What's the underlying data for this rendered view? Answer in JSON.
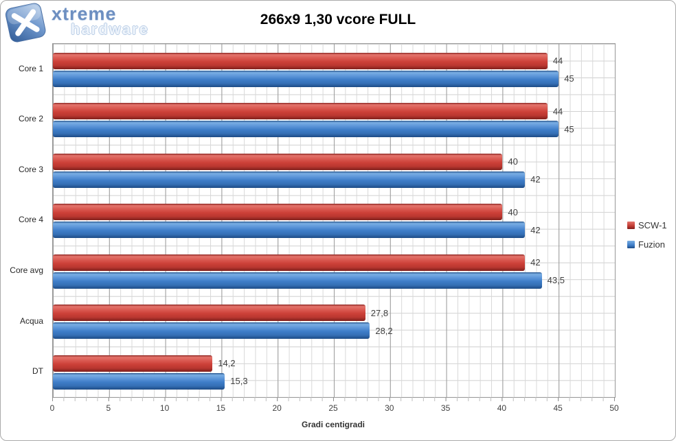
{
  "logo": {
    "brand_top": "xtreme",
    "brand_bottom": "hardware"
  },
  "legend": {
    "position": "right"
  },
  "colors": {
    "series_red": "#c0392f",
    "series_blue": "#3e7dc8",
    "grid_minor": "#d8d8d8",
    "grid_major": "#9a9a9a",
    "frame_border": "#a9a9a9",
    "text": "#3f3f3f"
  },
  "chart_data": {
    "type": "bar",
    "orientation": "horizontal",
    "title": "266x9 1,30 vcore FULL",
    "xlabel": "Gradi centigradi",
    "xlim": [
      0,
      50
    ],
    "xticks": [
      "0",
      "5",
      "10",
      "15",
      "20",
      "25",
      "30",
      "35",
      "40",
      "45",
      "50"
    ],
    "grid": "both",
    "legend_position": "right",
    "categories": [
      "Core 1",
      "Core 2",
      "Core 3",
      "Core 4",
      "Core avg",
      "Acqua",
      "DT"
    ],
    "series": [
      {
        "name": "SCW-1",
        "color": "#c0392f",
        "values": [
          44,
          44,
          40,
          40,
          42,
          27.8,
          14.2
        ],
        "labels": [
          "44",
          "44",
          "40",
          "40",
          "42",
          "27,8",
          "14,2"
        ]
      },
      {
        "name": "Fuzion",
        "color": "#3e7dc8",
        "values": [
          45,
          45,
          42,
          42,
          43.5,
          28.2,
          15.3
        ],
        "labels": [
          "45",
          "45",
          "42",
          "42",
          "43,5",
          "28,2",
          "15,3"
        ]
      }
    ]
  }
}
